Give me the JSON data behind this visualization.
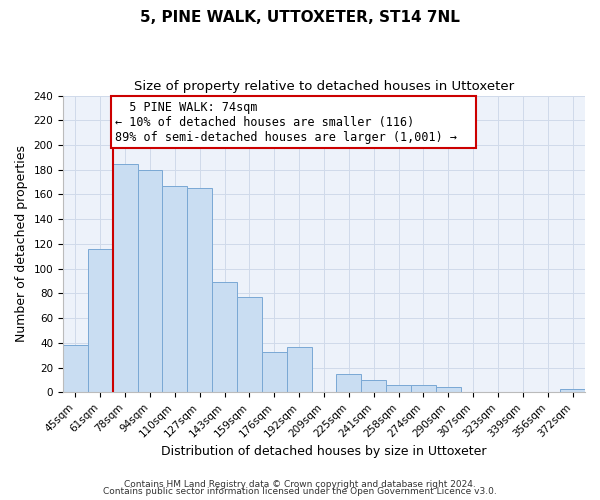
{
  "title": "5, PINE WALK, UTTOXETER, ST14 7NL",
  "subtitle": "Size of property relative to detached houses in Uttoxeter",
  "xlabel": "Distribution of detached houses by size in Uttoxeter",
  "ylabel": "Number of detached properties",
  "footnote1": "Contains HM Land Registry data © Crown copyright and database right 2024.",
  "footnote2": "Contains public sector information licensed under the Open Government Licence v3.0.",
  "bar_labels": [
    "45sqm",
    "61sqm",
    "78sqm",
    "94sqm",
    "110sqm",
    "127sqm",
    "143sqm",
    "159sqm",
    "176sqm",
    "192sqm",
    "209sqm",
    "225sqm",
    "241sqm",
    "258sqm",
    "274sqm",
    "290sqm",
    "307sqm",
    "323sqm",
    "339sqm",
    "356sqm",
    "372sqm"
  ],
  "bar_heights": [
    38,
    116,
    185,
    180,
    167,
    165,
    89,
    77,
    33,
    37,
    0,
    15,
    10,
    6,
    6,
    4,
    0,
    0,
    0,
    0,
    3
  ],
  "bar_color": "#c9ddf2",
  "bar_edge_color": "#7aa8d4",
  "vline_color": "#cc0000",
  "annotation_title": "5 PINE WALK: 74sqm",
  "annotation_line1": "← 10% of detached houses are smaller (116)",
  "annotation_line2": "89% of semi-detached houses are larger (1,001) →",
  "annotation_box_color": "#ffffff",
  "annotation_box_edge": "#cc0000",
  "ylim": [
    0,
    240
  ],
  "yticks": [
    0,
    20,
    40,
    60,
    80,
    100,
    120,
    140,
    160,
    180,
    200,
    220,
    240
  ],
  "grid_color": "#d0daea",
  "bg_color": "#edf2fa",
  "title_fontsize": 11,
  "subtitle_fontsize": 9.5,
  "axis_label_fontsize": 9,
  "tick_fontsize": 7.5,
  "annotation_fontsize": 8.5,
  "footnote_fontsize": 6.5
}
